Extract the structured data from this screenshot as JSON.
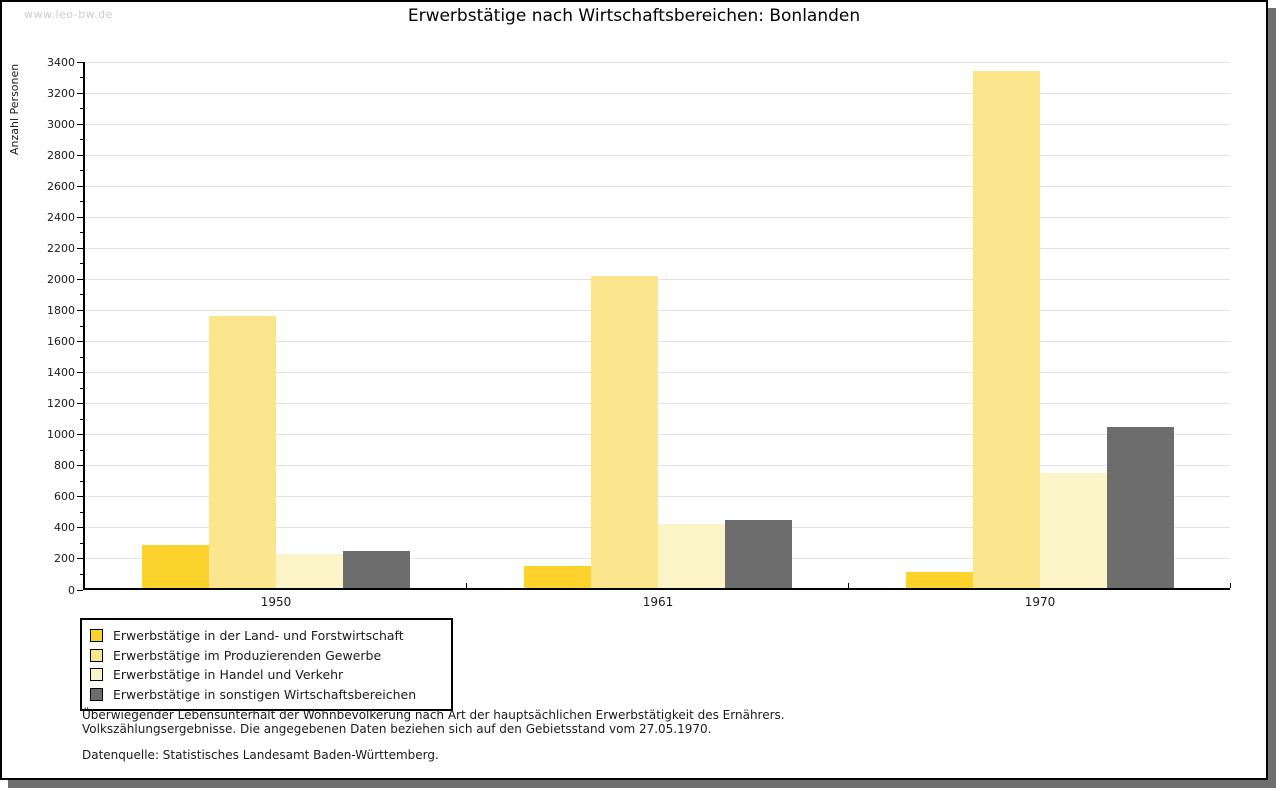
{
  "watermark": "www.leo-bw.de",
  "title": "Erwerbstätige nach Wirtschaftsbereichen: Bonlanden",
  "chart_data": {
    "type": "bar",
    "title": "Erwerbstätige nach Wirtschaftsbereichen: Bonlanden",
    "xlabel": "",
    "ylabel": "Anzahl Personen",
    "categories": [
      "1950",
      "1961",
      "1970"
    ],
    "series": [
      {
        "name": "Erwerbstätige in der Land- und Forstwirtschaft",
        "color": "#FCD32D",
        "values": [
          280,
          140,
          100
        ]
      },
      {
        "name": "Erwerbstätige im Produzierenden Gewerbe",
        "color": "#FBE68D",
        "values": [
          1750,
          2010,
          3330
        ]
      },
      {
        "name": "Erwerbstätige in Handel und Verkehr",
        "color": "#FBF4C6",
        "values": [
          220,
          410,
          740
        ]
      },
      {
        "name": "Erwerbstätige in sonstigen Wirtschaftsbereichen",
        "color": "#6D6D6D",
        "values": [
          240,
          440,
          1040
        ]
      }
    ],
    "ylim": [
      0,
      3400
    ],
    "ytick_step": 200,
    "minor_tick_step": 100,
    "grid": true,
    "gridline_color": "#e2e2e2",
    "legend_position": "bottom-left"
  },
  "notes": {
    "line1": "Überwiegender Lebensunterhalt der Wohnbevölkerung nach Art der hauptsächlichen Erwerbstätigkeit des Ernährers.",
    "line2": "Volkszählungsergebnisse. Die angegebenen Daten beziehen sich auf den Gebietsstand vom 27.05.1970.",
    "source": "Datenquelle: Statistisches Landesamt Baden-Württemberg."
  }
}
